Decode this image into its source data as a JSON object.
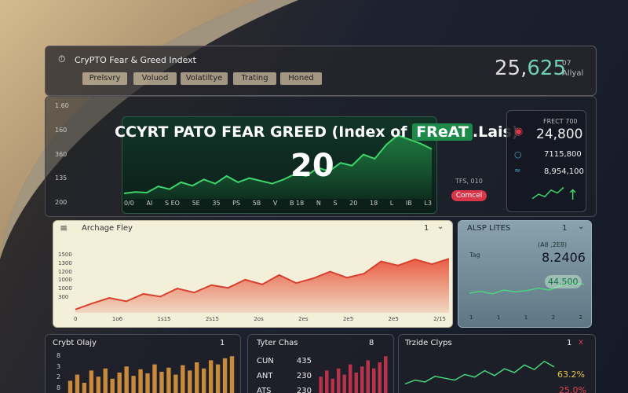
{
  "screen": {
    "header": {
      "title": "CryPTO Fear & Greed Indext",
      "tabs": [
        "Prelsvry",
        "Voluod",
        "Volatiltye",
        "Trating",
        "Honed"
      ],
      "value_main": "25,",
      "value_accent": "625",
      "value_note": "07",
      "value_sub": "Allyal"
    },
    "main": {
      "type": "area",
      "title": "CCYRT PATO FEAR GREED (Index of",
      "badge": "FReAT",
      "title_end": ".Lais)",
      "value": "20",
      "y_labels": [
        "1.60",
        "160",
        "360",
        "135",
        "200"
      ],
      "x_labels": [
        "0/0",
        "AI",
        "S EO",
        "5E",
        "35",
        "PS",
        "5B",
        "V",
        "B 18",
        "N",
        "S",
        "20",
        "18",
        "L",
        "IB",
        "L3"
      ],
      "values": [
        8,
        10,
        9,
        18,
        14,
        24,
        19,
        28,
        22,
        33,
        24,
        30,
        26,
        22,
        28,
        36,
        33,
        45,
        40,
        52,
        48,
        64,
        58,
        78,
        92,
        86,
        80,
        72
      ],
      "ylim": [
        0,
        100
      ],
      "color": "#3fd56a",
      "fill": "#1d7a3e",
      "side_note": "TFS, 010",
      "button": "Comcel"
    },
    "stats": {
      "type": "line",
      "label": "FRECT 700",
      "main": "24,800",
      "rows": [
        "7115,800",
        "8,954,100"
      ],
      "values": [
        20,
        42,
        30,
        62,
        48,
        75
      ],
      "ylim": [
        0,
        100
      ],
      "color": "#3fd56a"
    },
    "archive": {
      "type": "area",
      "title": "Archage Fley",
      "count": "1",
      "y_labels": [
        "1500",
        "1300",
        "1200",
        "1000",
        "1000",
        "300"
      ],
      "x_labels": [
        "0",
        "1o6",
        "1s15",
        "2s15",
        "2os",
        "2es",
        "2e5",
        "2e5",
        "2/15"
      ],
      "values": [
        5,
        14,
        22,
        17,
        28,
        24,
        36,
        30,
        41,
        37,
        49,
        42,
        56,
        44,
        51,
        61,
        52,
        58,
        76,
        70,
        79,
        72,
        80
      ],
      "ylim": [
        0,
        100
      ],
      "color": "#d8412f",
      "fill": "#e8553c"
    },
    "alsp": {
      "type": "line",
      "title": "ALSP LITES",
      "count": "1",
      "note": "(A8 ,2E8)",
      "tag": "Tag",
      "value": "8.2406",
      "highlight": "44.500",
      "x_labels": [
        "1",
        "1",
        "1",
        "2",
        "2"
      ],
      "values": [
        30,
        36,
        28,
        40,
        34,
        38,
        46,
        40,
        55,
        62,
        58
      ],
      "ylim": [
        0,
        100
      ],
      "color": "#49d67a"
    },
    "bottom": [
      {
        "type": "bar",
        "title": "Crybt Olajy",
        "count": "1",
        "y_labels": [
          "8",
          "3",
          "2",
          "8"
        ],
        "values": [
          30,
          45,
          25,
          55,
          40,
          60,
          35,
          50,
          65,
          42,
          58,
          48,
          70,
          52,
          62,
          45,
          68,
          55,
          75,
          60,
          80,
          70,
          85,
          90
        ],
        "ylim": [
          0,
          100
        ],
        "color": "#c98a3c"
      },
      {
        "type": "bar",
        "title": "Tyter Chas",
        "count": "8",
        "rows": [
          [
            "CUN",
            "435"
          ],
          [
            "ANT",
            "230"
          ],
          [
            "ATS",
            "230"
          ]
        ],
        "values": [
          40,
          55,
          35,
          60,
          45,
          70,
          50,
          65,
          80,
          60,
          75,
          90
        ],
        "ylim": [
          0,
          100
        ],
        "color": "#b8324a"
      },
      {
        "type": "line",
        "title": "Trzide Clyps",
        "count": "1",
        "close": "x",
        "stat1": "63.2%",
        "stat2": "25.0%",
        "values": [
          20,
          30,
          25,
          40,
          35,
          30,
          45,
          38,
          55,
          42,
          60,
          50,
          70,
          58,
          80,
          65
        ],
        "ylim": [
          0,
          100
        ],
        "color": "#49d67a"
      }
    ]
  }
}
